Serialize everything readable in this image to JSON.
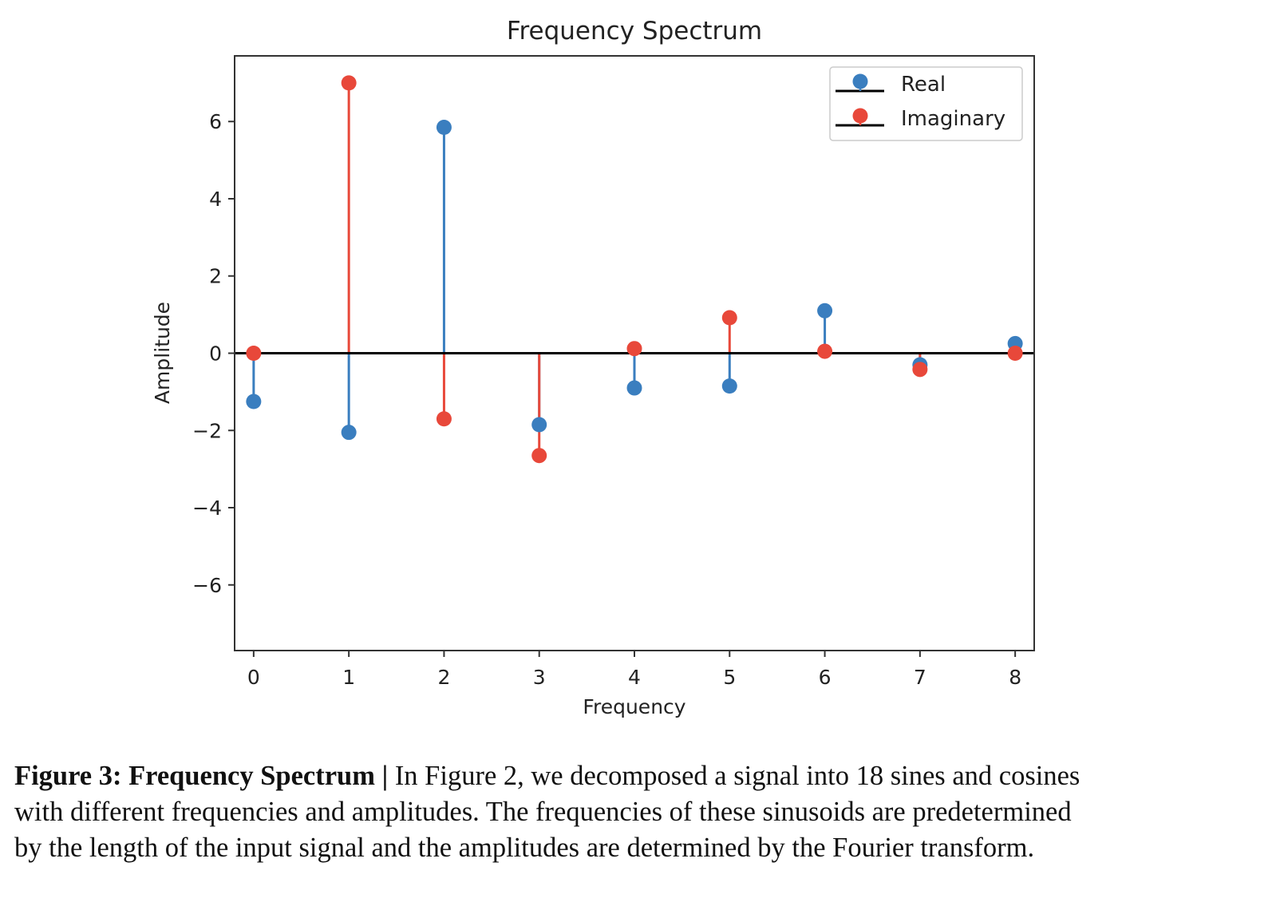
{
  "chart_data": {
    "type": "stem",
    "title": "Frequency Spectrum",
    "xlabel": "Frequency",
    "ylabel": "Amplitude",
    "xlim": [
      -0.2,
      8.2
    ],
    "ylim": [
      -7.7,
      7.7
    ],
    "x_ticks": [
      0,
      1,
      2,
      3,
      4,
      5,
      6,
      7,
      8
    ],
    "y_ticks": [
      -6,
      -4,
      -2,
      0,
      2,
      4,
      6
    ],
    "y_tick_labels": [
      "−6",
      "−4",
      "−2",
      "0",
      "2",
      "4",
      "6"
    ],
    "baseline": 0,
    "grid": false,
    "legend_position": "upper-right",
    "x": [
      0,
      1,
      2,
      3,
      4,
      5,
      6,
      7,
      8
    ],
    "series": [
      {
        "name": "Real",
        "color": "#3a7ebf",
        "values": [
          -1.25,
          -2.05,
          5.85,
          -1.85,
          -0.9,
          -0.85,
          1.1,
          -0.3,
          0.25
        ]
      },
      {
        "name": "Imaginary",
        "color": "#e8483a",
        "values": [
          0.0,
          7.0,
          -1.7,
          -2.65,
          0.12,
          0.92,
          0.05,
          -0.42,
          0.0
        ]
      }
    ],
    "baseline_color": "#000000"
  },
  "caption": {
    "label": "Figure 3: Frequency Spectrum |",
    "lines": [
      " In Figure 2, we decomposed a signal into 18 sines and cosines",
      "with different frequencies and amplitudes. The frequencies of these sinusoids are predetermined",
      "by the length of the input signal and the amplitudes are determined by the Fourier transform."
    ]
  }
}
